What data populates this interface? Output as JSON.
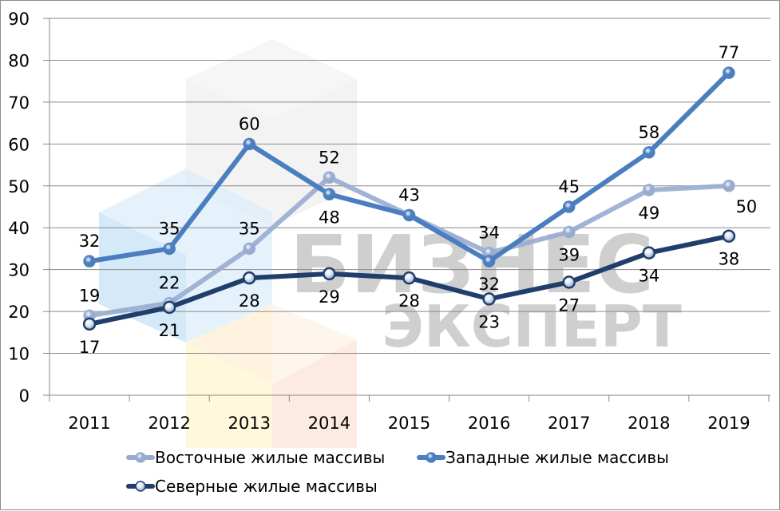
{
  "chart_data": {
    "type": "line",
    "title": "",
    "xlabel": "",
    "ylabel": "",
    "categories": [
      "2011",
      "2012",
      "2013",
      "2014",
      "2015",
      "2016",
      "2017",
      "2018",
      "2019"
    ],
    "ylim": [
      0,
      90
    ],
    "yticks": [
      0,
      10,
      20,
      30,
      40,
      50,
      60,
      70,
      80,
      90
    ],
    "grid": true,
    "legend_position": "bottom",
    "series": [
      {
        "name": "Восточные жилые массивы",
        "color": "#98acd0",
        "values": [
          19,
          22,
          35,
          52,
          43,
          34,
          39,
          49,
          50
        ]
      },
      {
        "name": "Западные жилые массивы",
        "color": "#4a7ebf",
        "values": [
          32,
          35,
          60,
          48,
          43,
          32,
          45,
          58,
          77
        ]
      },
      {
        "name": "Северные жилые массивы",
        "color": "#1f3e6b",
        "values": [
          17,
          21,
          28,
          29,
          28,
          23,
          27,
          34,
          38
        ]
      }
    ],
    "watermark": {
      "line1": "БИЗНЕС",
      "line2": "ЭКСПЕРТ"
    }
  }
}
